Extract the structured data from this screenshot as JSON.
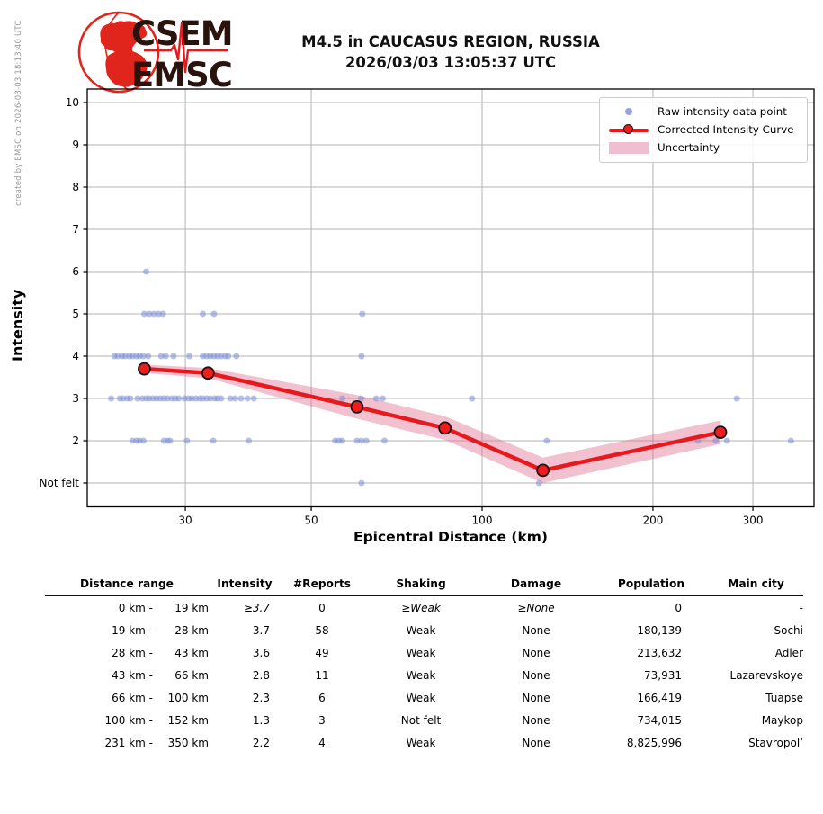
{
  "created_by": "created by EMSC on 2026-03-03 18:13:40 UTC",
  "logo": {
    "line1": "CSEM",
    "line2": "EMSC"
  },
  "title": {
    "line1": "M4.5 in CAUCASUS REGION, RUSSIA",
    "line2": "2026/03/03 13:05:37 UTC"
  },
  "chart_data": {
    "type": "scatter",
    "title": "M4.5 in CAUCASUS REGION, RUSSIA 2026/03/03 13:05:37 UTC",
    "xlabel": "Epicentral Distance (km)",
    "ylabel": "Intensity",
    "x_scale": "log",
    "xlim_km": [
      20.2,
      386
    ],
    "ylim": [
      0.45,
      10.32
    ],
    "x_ticks": [
      30,
      50,
      100,
      200,
      300
    ],
    "y_ticks": [
      {
        "value": 1,
        "label": "Not felt"
      },
      {
        "value": 2,
        "label": "2"
      },
      {
        "value": 3,
        "label": "3"
      },
      {
        "value": 4,
        "label": "4"
      },
      {
        "value": 5,
        "label": "5"
      },
      {
        "value": 6,
        "label": "6"
      },
      {
        "value": 7,
        "label": "7"
      },
      {
        "value": 8,
        "label": "8"
      },
      {
        "value": 9,
        "label": "9"
      },
      {
        "value": 10,
        "label": "10"
      }
    ],
    "grid": true,
    "legend_position": "upper right",
    "legend": [
      {
        "label": "Raw intensity data point",
        "type": "dot",
        "color": "#7c8ed5"
      },
      {
        "label": "Corrected Intensity Curve",
        "type": "line-marker",
        "color": "#e8191c"
      },
      {
        "label": "Uncertainty",
        "type": "band",
        "color": "#efbed0"
      }
    ],
    "raw_points": [
      [
        25.6,
        6
      ],
      [
        25.4,
        5
      ],
      [
        25.9,
        5
      ],
      [
        26.4,
        5
      ],
      [
        26.9,
        5
      ],
      [
        27.4,
        5
      ],
      [
        32.2,
        5
      ],
      [
        33.7,
        5
      ],
      [
        61.5,
        5
      ],
      [
        22.5,
        4
      ],
      [
        22.8,
        4
      ],
      [
        23.2,
        4
      ],
      [
        23.5,
        4
      ],
      [
        23.9,
        4
      ],
      [
        24.2,
        4
      ],
      [
        24.6,
        4
      ],
      [
        24.9,
        4
      ],
      [
        25.3,
        4
      ],
      [
        25.8,
        4
      ],
      [
        27.2,
        4
      ],
      [
        27.7,
        4
      ],
      [
        28.6,
        4
      ],
      [
        30.5,
        4
      ],
      [
        32.2,
        4
      ],
      [
        32.7,
        4
      ],
      [
        33.2,
        4
      ],
      [
        33.7,
        4
      ],
      [
        34.2,
        4
      ],
      [
        34.7,
        4
      ],
      [
        35.3,
        4
      ],
      [
        35.7,
        4
      ],
      [
        36.9,
        4
      ],
      [
        61.3,
        4
      ],
      [
        22.2,
        3
      ],
      [
        23.0,
        3
      ],
      [
        23.3,
        3
      ],
      [
        23.7,
        3
      ],
      [
        24.0,
        3
      ],
      [
        24.7,
        3
      ],
      [
        25.2,
        3
      ],
      [
        25.6,
        3
      ],
      [
        25.9,
        3
      ],
      [
        26.3,
        3
      ],
      [
        26.7,
        3
      ],
      [
        27.1,
        3
      ],
      [
        27.5,
        3
      ],
      [
        27.9,
        3
      ],
      [
        28.4,
        3
      ],
      [
        28.8,
        3
      ],
      [
        29.2,
        3
      ],
      [
        29.9,
        3
      ],
      [
        30.4,
        3
      ],
      [
        30.8,
        3
      ],
      [
        31.3,
        3
      ],
      [
        31.8,
        3
      ],
      [
        32.2,
        3
      ],
      [
        32.7,
        3
      ],
      [
        33.2,
        3
      ],
      [
        33.8,
        3
      ],
      [
        34.2,
        3
      ],
      [
        34.7,
        3
      ],
      [
        36.0,
        3
      ],
      [
        36.7,
        3
      ],
      [
        37.6,
        3
      ],
      [
        38.6,
        3
      ],
      [
        39.6,
        3
      ],
      [
        56.7,
        3
      ],
      [
        61.2,
        3
      ],
      [
        65.1,
        3
      ],
      [
        66.8,
        3
      ],
      [
        96,
        3
      ],
      [
        281,
        3
      ],
      [
        24.2,
        2
      ],
      [
        24.6,
        2
      ],
      [
        24.9,
        2
      ],
      [
        25.3,
        2
      ],
      [
        27.5,
        2
      ],
      [
        27.9,
        2
      ],
      [
        28.2,
        2
      ],
      [
        30.2,
        2
      ],
      [
        33.6,
        2
      ],
      [
        38.8,
        2
      ],
      [
        55.1,
        2
      ],
      [
        55.9,
        2
      ],
      [
        56.7,
        2
      ],
      [
        60.2,
        2
      ],
      [
        61.3,
        2
      ],
      [
        62.5,
        2
      ],
      [
        67.3,
        2
      ],
      [
        96,
        2
      ],
      [
        130,
        2
      ],
      [
        240,
        2
      ],
      [
        258,
        2
      ],
      [
        270,
        2
      ],
      [
        350,
        2
      ],
      [
        61.3,
        1
      ],
      [
        126,
        1
      ]
    ],
    "corrected_curve": {
      "distances_km": [
        25.4,
        32.9,
        60.2,
        86,
        128,
        263
      ],
      "intensities": [
        3.7,
        3.6,
        2.8,
        2.3,
        1.3,
        2.2
      ],
      "uncertainty": [
        0.1,
        0.12,
        0.28,
        0.28,
        0.3,
        0.28
      ]
    }
  },
  "table": {
    "headers": [
      "Distance range",
      "Intensity",
      "#Reports",
      "Shaking",
      "Damage",
      "Population",
      "Main city"
    ],
    "rows": [
      {
        "range_from": "0 km -",
        "range_to": "19 km",
        "intensity": "≥3.7",
        "reports": "0",
        "shaking": "≥Weak",
        "damage": "≥None",
        "population": "0",
        "city": "-",
        "italic": true
      },
      {
        "range_from": "19 km -",
        "range_to": "28 km",
        "intensity": "3.7",
        "reports": "58",
        "shaking": "Weak",
        "damage": "None",
        "population": "180,139",
        "city": "Sochi",
        "italic": false
      },
      {
        "range_from": "28 km -",
        "range_to": "43 km",
        "intensity": "3.6",
        "reports": "49",
        "shaking": "Weak",
        "damage": "None",
        "population": "213,632",
        "city": "Adler",
        "italic": false
      },
      {
        "range_from": "43 km -",
        "range_to": "66 km",
        "intensity": "2.8",
        "reports": "11",
        "shaking": "Weak",
        "damage": "None",
        "population": "73,931",
        "city": "Lazarevskoye",
        "italic": false
      },
      {
        "range_from": "66 km -",
        "range_to": "100 km",
        "intensity": "2.3",
        "reports": "6",
        "shaking": "Weak",
        "damage": "None",
        "population": "166,419",
        "city": "Tuapse",
        "italic": false
      },
      {
        "range_from": "100 km -",
        "range_to": "152 km",
        "intensity": "1.3",
        "reports": "3",
        "shaking": "Not felt",
        "damage": "None",
        "population": "734,015",
        "city": "Maykop",
        "italic": false
      },
      {
        "range_from": "231 km -",
        "range_to": "350 km",
        "intensity": "2.2",
        "reports": "4",
        "shaking": "Weak",
        "damage": "None",
        "population": "8,825,996",
        "city": "Stavropol’",
        "italic": false
      }
    ]
  }
}
